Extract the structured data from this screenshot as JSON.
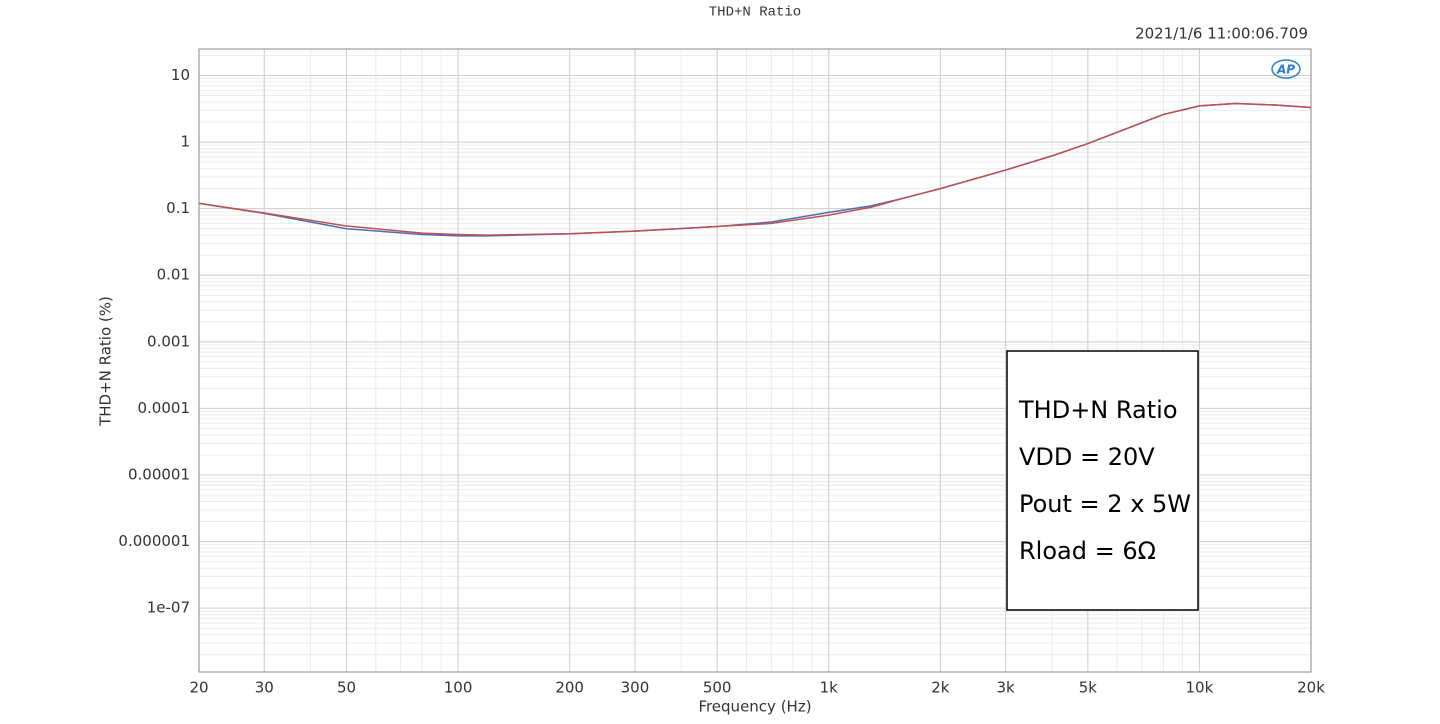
{
  "chart_data": {
    "type": "line",
    "title": "THD+N Ratio",
    "timestamp": "2021/1/6 11:00:06.709",
    "logo": "AP",
    "x_label": "Frequency (Hz)",
    "y_label": "THD+N Ratio (%)",
    "xlog": true,
    "ylog": true,
    "grid": true,
    "xlim": [
      20,
      20000
    ],
    "ylim": [
      1.1e-08,
      25
    ],
    "xticks": [
      20,
      30,
      50,
      100,
      200,
      300,
      500,
      {
        "value": 1000,
        "label": "1k"
      },
      {
        "value": 2000,
        "label": "2k"
      },
      {
        "value": 3000,
        "label": "3k"
      },
      {
        "value": 5000,
        "label": "5k"
      },
      {
        "value": 10000,
        "label": "10k"
      },
      {
        "value": 20000,
        "label": "20k"
      }
    ],
    "yticks": [
      10,
      1,
      0.1,
      0.01,
      0.001,
      0.0001,
      1e-05,
      1e-06,
      {
        "value": 1e-07,
        "label": "1e-07"
      }
    ],
    "x": [
      20,
      30,
      50,
      80,
      100,
      120,
      200,
      300,
      500,
      700,
      1000,
      1300,
      1600,
      2000,
      3000,
      4000,
      5000,
      8000,
      10000,
      12500,
      16000,
      20000
    ],
    "series": [
      {
        "color": "#4a6fb5",
        "values": [
          0.12,
          0.085,
          0.05,
          0.041,
          0.039,
          0.039,
          0.042,
          0.046,
          0.054,
          0.063,
          0.088,
          0.11,
          0.145,
          0.2,
          0.38,
          0.62,
          0.95,
          2.6,
          3.5,
          3.8,
          3.6,
          3.3
        ]
      },
      {
        "color": "#c0504d",
        "values": [
          0.12,
          0.086,
          0.055,
          0.043,
          0.041,
          0.04,
          0.042,
          0.046,
          0.054,
          0.06,
          0.08,
          0.105,
          0.145,
          0.2,
          0.38,
          0.62,
          0.95,
          2.6,
          3.5,
          3.8,
          3.6,
          3.3
        ]
      }
    ],
    "annotations": [
      "THD+N Ratio",
      "VDD = 20V",
      "Pout = 2 x 5W",
      "Rload = 6Ω"
    ]
  }
}
